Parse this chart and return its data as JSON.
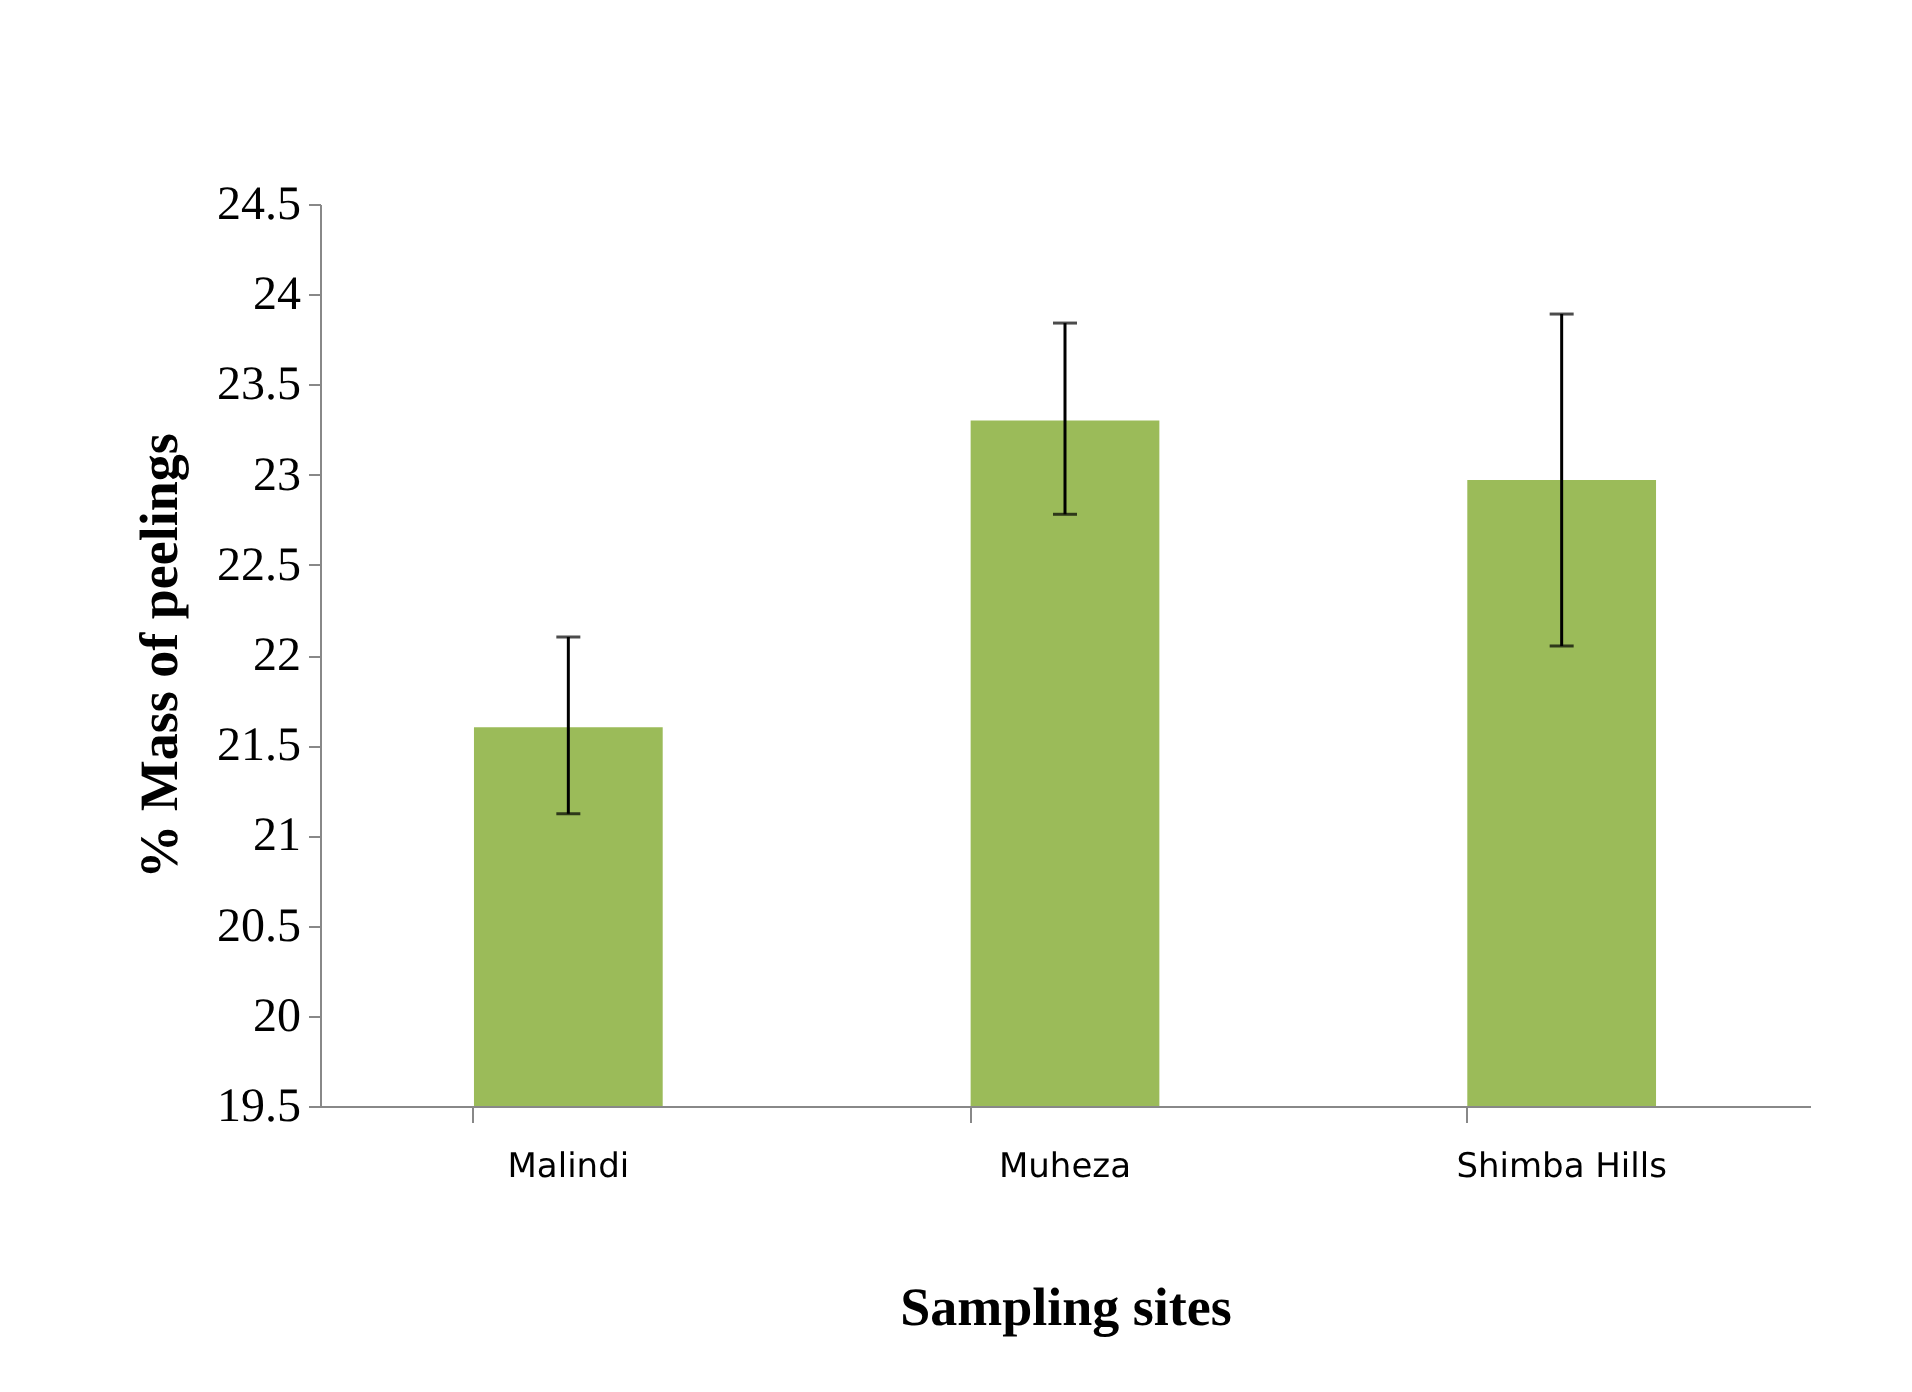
{
  "chart_data": {
    "type": "bar",
    "xlabel": "Sampling sites",
    "ylabel": "% Mass of peelings",
    "categories": [
      "Malindi",
      "Muheza",
      "Shimba Hills"
    ],
    "values": [
      21.6,
      23.3,
      22.97
    ],
    "errors": [
      [
        21.12,
        22.1
      ],
      [
        22.78,
        23.84
      ],
      [
        22.05,
        23.89
      ]
    ],
    "color": "#9bbb59",
    "ylim": [
      19.5,
      24.5
    ],
    "yticks": [
      19.5,
      20,
      20.5,
      21,
      21.5,
      22,
      22.5,
      23,
      23.5,
      24,
      24.5
    ],
    "grid": false
  }
}
